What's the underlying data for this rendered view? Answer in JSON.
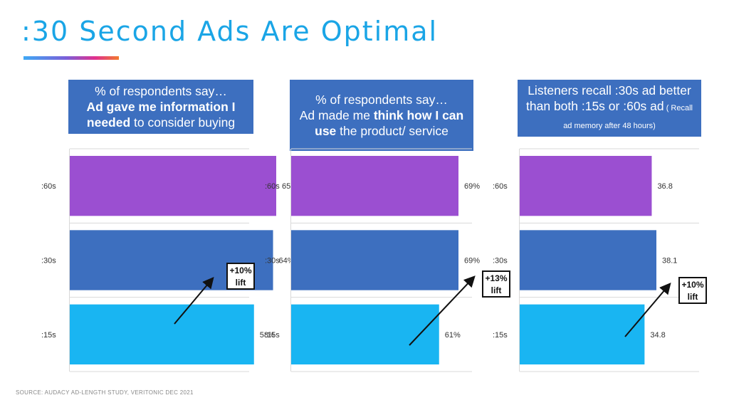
{
  "title": ":30 Second Ads Are Optimal",
  "source": "SOURCE: AUDACY AD-LENGTH STUDY, VERITONIC DEC 2021",
  "colors": {
    "title": "#1AA5E6",
    "header": "#3D6FBF",
    "s60": "#9B4FD1",
    "s30": "#3D6FBF",
    "s15": "#19B5F2"
  },
  "panels": [
    {
      "header": {
        "line1": "% of respondents say…",
        "bold1": "Ad gave me information I needed",
        "rest1": " to consider buying"
      },
      "lift": [
        "+10%",
        "lift"
      ]
    },
    {
      "header": {
        "line1": "% of respondents say…",
        "pre2": "Ad made me ",
        "bold2": "think how I can use",
        "rest2": " the product/ service"
      },
      "lift": [
        "+13%",
        "lift"
      ]
    },
    {
      "header": {
        "text3": "Listeners recall :30s ad better than both :15s or :60s ad",
        "small3": " ( Recall ad memory after 48 hours)"
      },
      "lift": [
        "+10%",
        "lift"
      ]
    }
  ],
  "chart_data": [
    {
      "type": "bar",
      "orientation": "horizontal",
      "categories": [
        ":60s",
        ":30s",
        ":15s"
      ],
      "values": [
        65,
        64,
        58
      ],
      "labels": [
        "65%",
        "64%",
        "58%"
      ]
    },
    {
      "type": "bar",
      "orientation": "horizontal",
      "categories": [
        ":60s",
        ":30s",
        ":15s"
      ],
      "values": [
        69,
        69,
        61
      ],
      "labels": [
        "69%",
        "69%",
        "61%"
      ]
    },
    {
      "type": "bar",
      "orientation": "horizontal",
      "categories": [
        ":60s",
        ":30s",
        ":15s"
      ],
      "values": [
        36.8,
        38.1,
        34.8
      ],
      "labels": [
        "36.8",
        "38.1",
        "34.8"
      ]
    }
  ]
}
